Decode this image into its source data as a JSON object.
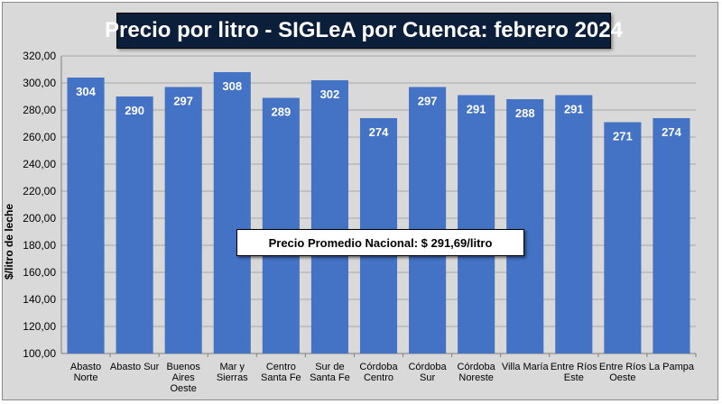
{
  "chart_data": {
    "type": "bar",
    "title": "Precio por litro - SIGLeA por Cuenca: febrero 2024",
    "ylabel": "$/litro de leche",
    "xlabel": "",
    "ylim": [
      100,
      320
    ],
    "yticks": [
      "100,00",
      "120,00",
      "140,00",
      "160,00",
      "180,00",
      "200,00",
      "220,00",
      "240,00",
      "260,00",
      "280,00",
      "300,00",
      "320,00"
    ],
    "ytick_values": [
      100,
      120,
      140,
      160,
      180,
      200,
      220,
      240,
      260,
      280,
      300,
      320
    ],
    "categories": [
      [
        "Abasto",
        "Norte"
      ],
      [
        "Abasto Sur"
      ],
      [
        "Buenos",
        "Aires",
        "Oeste"
      ],
      [
        "Mar y",
        "Sierras"
      ],
      [
        "Centro",
        "Santa Fe"
      ],
      [
        "Sur de",
        "Santa Fe"
      ],
      [
        "Córdoba",
        "Centro"
      ],
      [
        "Córdoba",
        "Sur"
      ],
      [
        "Córdoba",
        "Noreste"
      ],
      [
        "Villa María"
      ],
      [
        "Entre Ríos",
        "Este"
      ],
      [
        "Entre Ríos",
        "Oeste"
      ],
      [
        "La Pampa"
      ]
    ],
    "values": [
      304,
      290,
      297,
      308,
      289,
      302,
      274,
      297,
      291,
      288,
      291,
      271,
      274
    ],
    "data_labels": [
      "304",
      "290",
      "297",
      "308",
      "289",
      "302",
      "274",
      "297",
      "291",
      "288",
      "291",
      "271",
      "274"
    ],
    "bar_color": "#4472c4",
    "grid": true,
    "annotation": "Precio Promedio Nacional: $ 291,69/litro"
  }
}
